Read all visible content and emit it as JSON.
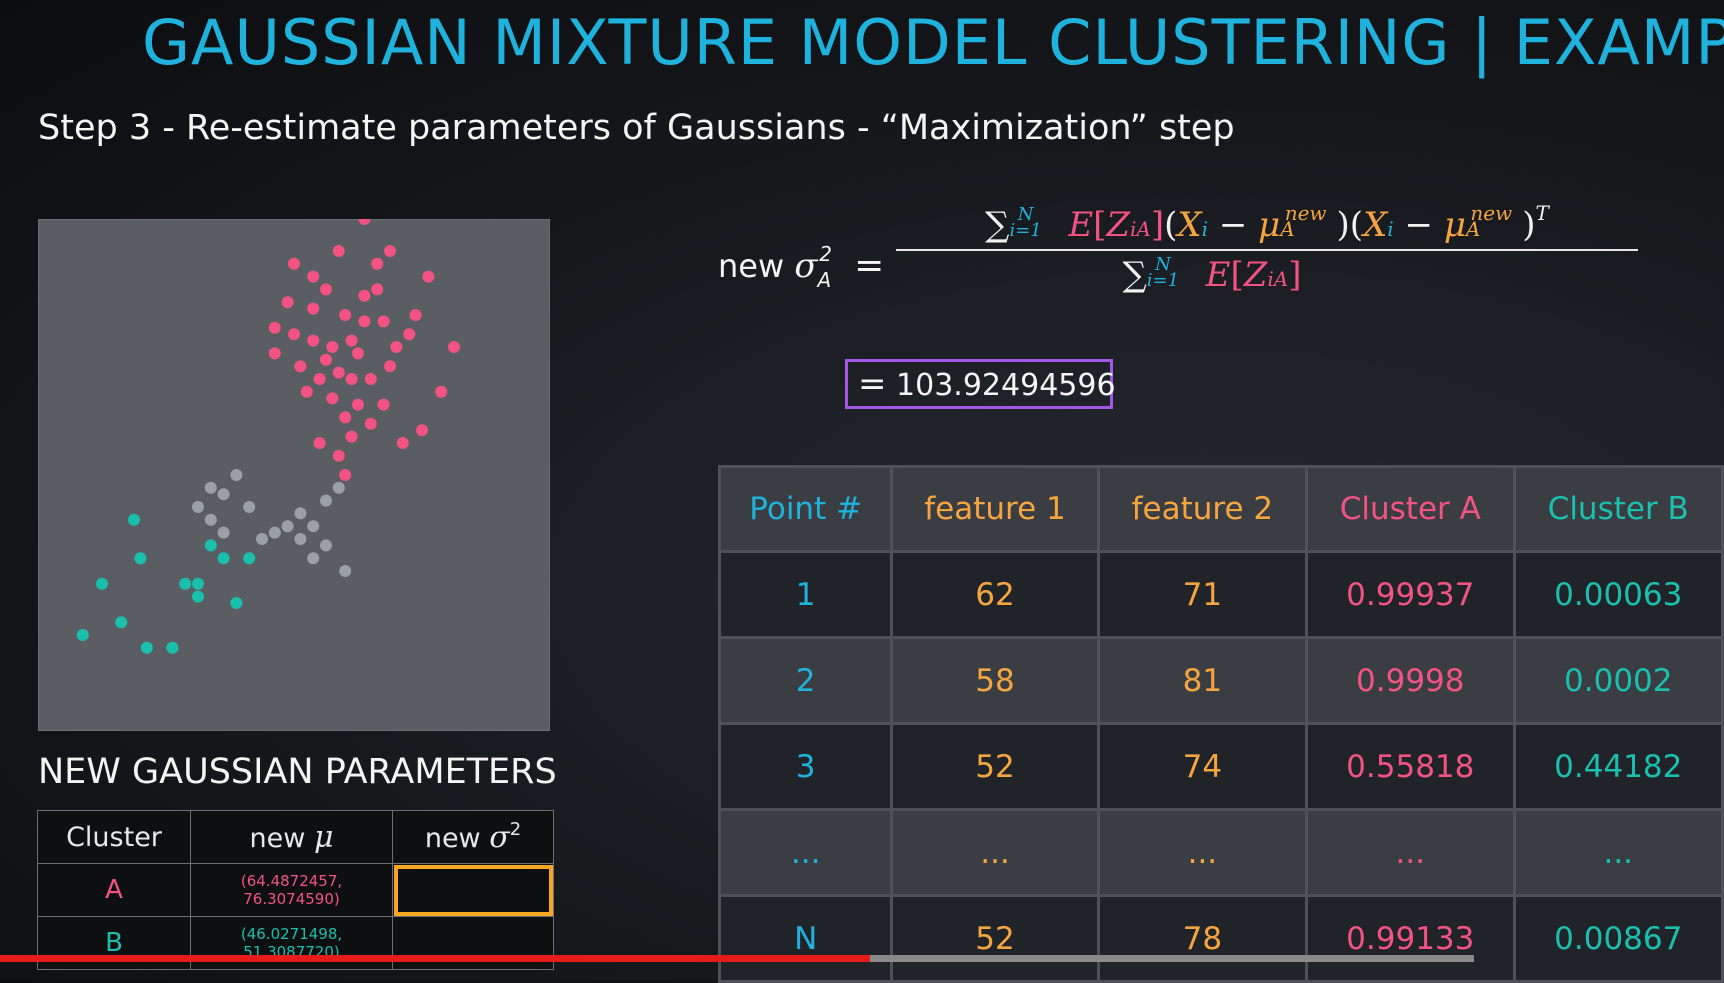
{
  "title": "GAUSSIAN MIXTURE MODEL CLUSTERING | EXAMPLE",
  "subtitle": "Step 3 - Re-estimate parameters of Gaussians - “Maximization” step",
  "formula": {
    "lhs_word": "new",
    "result": "103.92494596"
  },
  "params": {
    "heading": "NEW GAUSSIAN PARAMETERS",
    "headers": {
      "cluster": "Cluster",
      "mu_prefix": "new",
      "sigma_prefix": "new"
    },
    "rows": [
      {
        "cluster": "A",
        "mu": "(64.4872457, 76.3074590)",
        "sigma": ""
      },
      {
        "cluster": "B",
        "mu": "(46.0271498, 51.3087720)",
        "sigma": ""
      }
    ]
  },
  "table": {
    "headers": [
      "Point #",
      "feature 1",
      "feature 2",
      "Cluster A",
      "Cluster B"
    ],
    "rows": [
      [
        "1",
        "62",
        "71",
        "0.99937",
        "0.00063"
      ],
      [
        "2",
        "58",
        "81",
        "0.9998",
        "0.0002"
      ],
      [
        "3",
        "52",
        "74",
        "0.55818",
        "0.44182"
      ],
      [
        "...",
        "...",
        "...",
        "...",
        "..."
      ],
      [
        "N",
        "52",
        "78",
        "0.99133",
        "0.00867"
      ]
    ]
  },
  "colors": {
    "title": "#1fb2dc",
    "cluster_a": "#f25383",
    "cluster_b": "#1bbfad",
    "feature": "#f5a540",
    "result_border": "#a257e6",
    "highlight_cell": "#f5a623",
    "progress": "#e81b1b"
  },
  "progress": {
    "played_fraction": 0.59
  },
  "chart_data": {
    "type": "scatter",
    "series": [
      {
        "color": "#f25383",
        "points": [
          [
            62,
            71
          ],
          [
            58,
            81
          ],
          [
            52,
            74
          ],
          [
            64,
            76
          ],
          [
            66,
            79
          ],
          [
            70,
            72
          ],
          [
            60,
            84
          ],
          [
            68,
            88
          ],
          [
            57,
            68
          ],
          [
            63,
            64
          ],
          [
            72,
            60
          ],
          [
            74,
            80
          ],
          [
            55,
            77
          ],
          [
            61,
            75
          ],
          [
            59,
            70
          ],
          [
            65,
            74
          ],
          [
            67,
            70
          ],
          [
            69,
            66
          ],
          [
            71,
            75
          ],
          [
            62,
            90
          ],
          [
            66,
            95
          ],
          [
            54,
            82
          ],
          [
            58,
            76
          ],
          [
            60,
            73
          ],
          [
            64,
            70
          ],
          [
            63,
            80
          ],
          [
            76,
            86
          ],
          [
            78,
            68
          ],
          [
            80,
            75
          ],
          [
            75,
            62
          ],
          [
            56,
            72
          ],
          [
            73,
            77
          ],
          [
            61,
            67
          ],
          [
            59,
            60
          ],
          [
            65,
            66
          ],
          [
            67,
            63
          ],
          [
            62,
            58
          ],
          [
            64,
            61
          ],
          [
            63,
            55
          ],
          [
            68,
            84
          ],
          [
            70,
            90
          ],
          [
            58,
            86
          ],
          [
            55,
            88
          ],
          [
            66,
            83
          ],
          [
            69,
            79
          ],
          [
            52,
            78
          ]
        ]
      },
      {
        "color": "#9aa0a6",
        "points": [
          [
            44,
            52
          ],
          [
            42,
            53
          ],
          [
            46,
            55
          ],
          [
            48,
            50
          ],
          [
            50,
            45
          ],
          [
            52,
            46
          ],
          [
            54,
            47
          ],
          [
            56,
            49
          ],
          [
            58,
            47
          ],
          [
            60,
            51
          ],
          [
            62,
            53
          ],
          [
            44,
            46
          ],
          [
            42,
            48
          ],
          [
            40,
            50
          ],
          [
            58,
            42
          ],
          [
            60,
            44
          ],
          [
            56,
            45
          ],
          [
            63,
            40
          ]
        ]
      },
      {
        "color": "#1bbfad",
        "points": [
          [
            30,
            48
          ],
          [
            31,
            42
          ],
          [
            25,
            38
          ],
          [
            38,
            38
          ],
          [
            40,
            38
          ],
          [
            40,
            36
          ],
          [
            46,
            35
          ],
          [
            42,
            44
          ],
          [
            44,
            42
          ],
          [
            22,
            30
          ],
          [
            28,
            32
          ],
          [
            32,
            28
          ],
          [
            36,
            28
          ],
          [
            48,
            42
          ]
        ]
      }
    ]
  }
}
